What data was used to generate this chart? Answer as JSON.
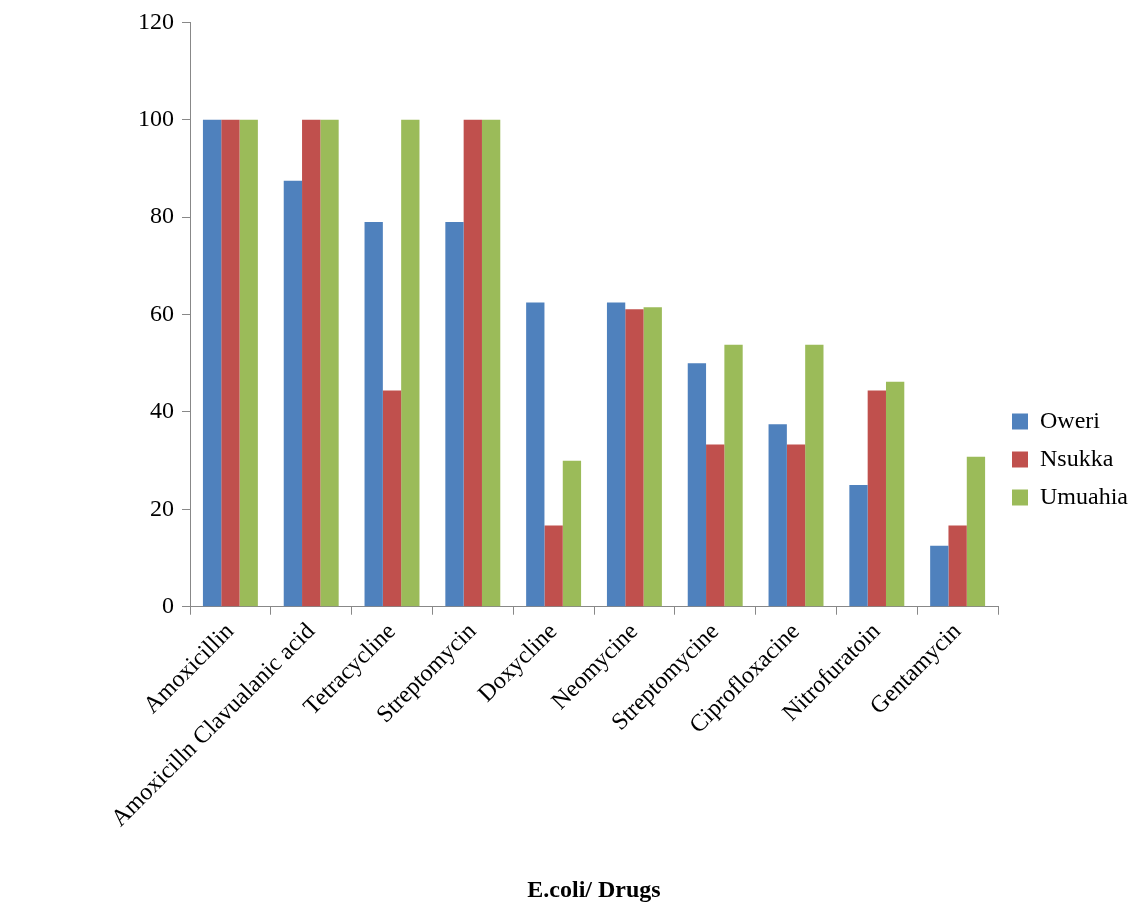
{
  "chart_data": {
    "type": "bar",
    "xlabel": "E.coli/ Drugs",
    "categories": [
      "Amoxicillin",
      "Amoxicilln Clavualanic acid",
      "Tetracycline",
      "Streptomycin",
      "Doxycline",
      "Neomycine",
      "Streptomycine",
      "Ciprofloxacine",
      "Nitrofuratoin",
      "Gentamycin"
    ],
    "series": [
      {
        "name": "Oweri",
        "color": "#4f81bd",
        "values": [
          100,
          87.5,
          79,
          79,
          62.5,
          62.5,
          50,
          37.5,
          25,
          12.5
        ]
      },
      {
        "name": "Nsukka",
        "color": "#c0504d",
        "values": [
          100,
          100,
          44.4,
          100,
          16.7,
          61.1,
          33.3,
          33.3,
          44.4,
          16.7
        ]
      },
      {
        "name": "Umuahia",
        "color": "#9bbb59",
        "values": [
          100,
          100,
          100,
          100,
          30,
          61.5,
          53.8,
          53.8,
          46.2,
          30.8
        ]
      }
    ],
    "ylim": [
      0,
      120
    ],
    "yticks": [
      0,
      20,
      40,
      60,
      80,
      100,
      120
    ],
    "grid": false,
    "legend": "right"
  }
}
